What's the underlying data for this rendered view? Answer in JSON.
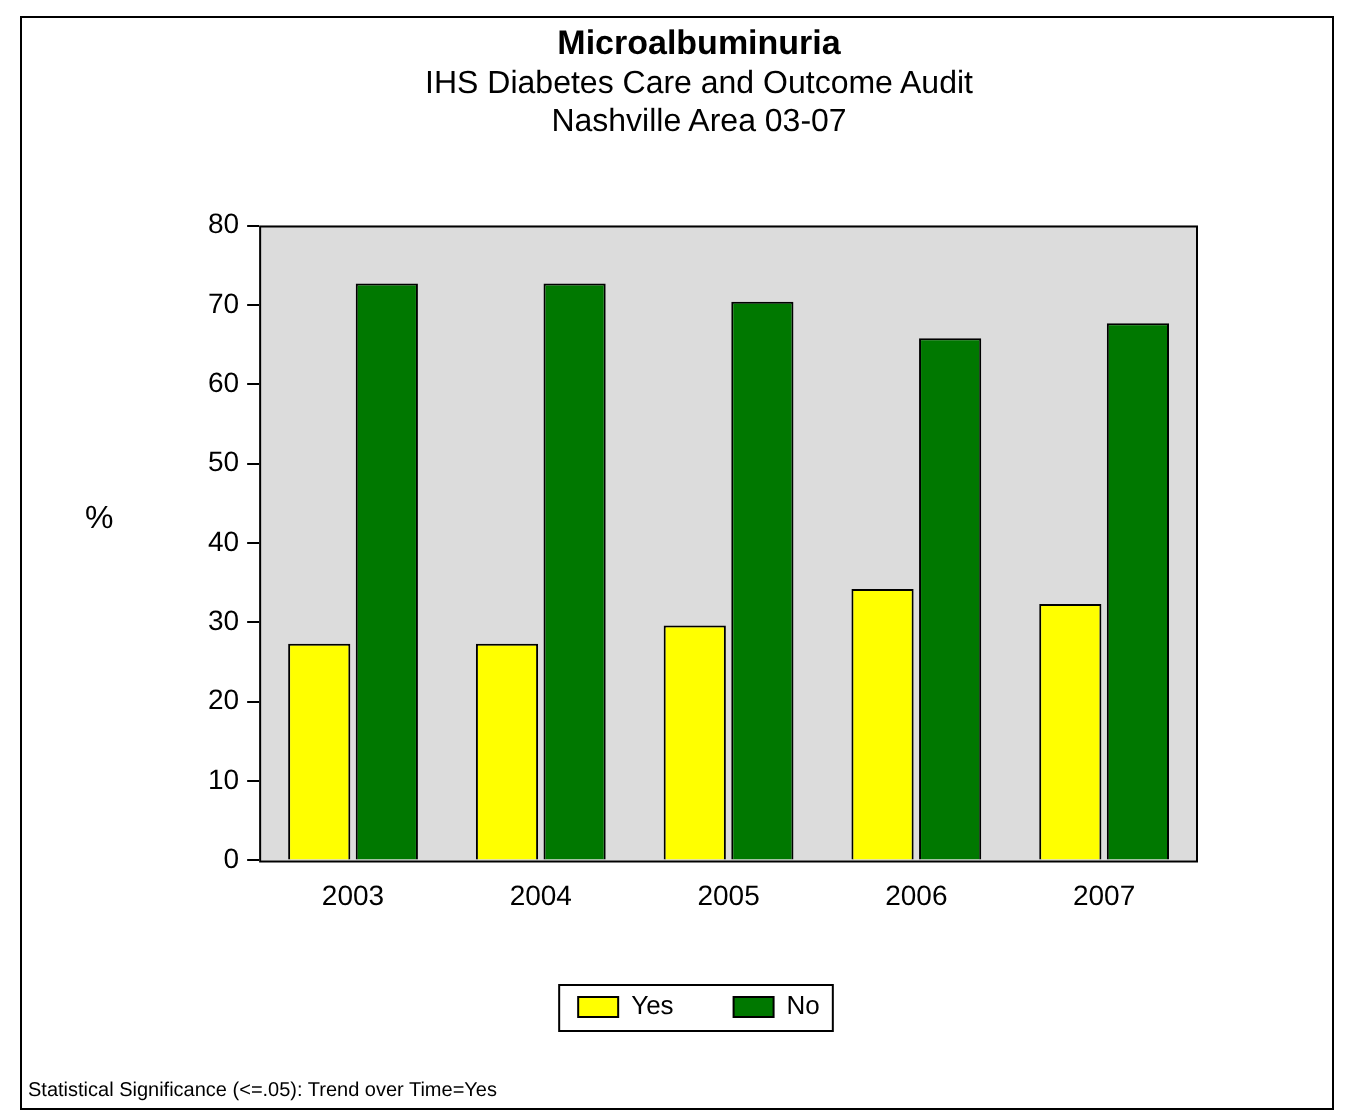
{
  "chart_data": {
    "type": "bar",
    "title": "Microalbuminuria",
    "subtitle": "IHS Diabetes Care and Outcome Audit\nNashville Area 03-07",
    "ylabel": "%",
    "categories": [
      "2003",
      "2004",
      "2005",
      "2006",
      "2007"
    ],
    "series": [
      {
        "name": "Yes",
        "color": "#ffff00",
        "values": [
          27.3,
          27.3,
          29.6,
          34.2,
          32.3
        ]
      },
      {
        "name": "No",
        "color": "#007800",
        "values": [
          72.7,
          72.7,
          70.4,
          65.8,
          67.7
        ]
      }
    ],
    "ylim": [
      0,
      80
    ],
    "yticks": [
      0,
      10,
      20,
      30,
      40,
      50,
      60,
      70,
      80
    ],
    "grid": false,
    "legend": "bottom",
    "annotations": [
      "Statistical Significance (<=.05): Trend over Time=Yes"
    ]
  }
}
